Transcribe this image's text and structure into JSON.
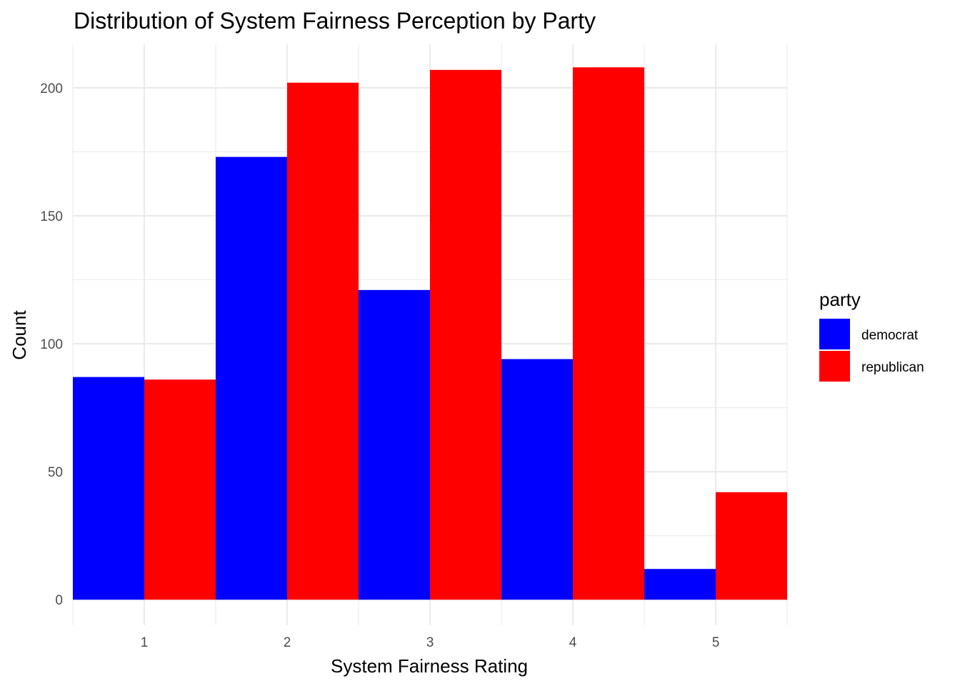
{
  "chart_data": {
    "type": "bar",
    "title": "Distribution of System Fairness Perception by Party",
    "xlabel": "System Fairness Rating",
    "ylabel": "Count",
    "categories": [
      "1",
      "2",
      "3",
      "4",
      "5"
    ],
    "series": [
      {
        "name": "democrat",
        "color": "#0000ff",
        "values": [
          87,
          173,
          121,
          94,
          12
        ]
      },
      {
        "name": "republican",
        "color": "#ff0000",
        "values": [
          86,
          202,
          207,
          208,
          42
        ]
      }
    ],
    "ylim": [
      -10,
      217
    ],
    "yticks": [
      0,
      50,
      100,
      150,
      200
    ],
    "grid": true,
    "legend": {
      "title": "party",
      "position": "right"
    }
  }
}
